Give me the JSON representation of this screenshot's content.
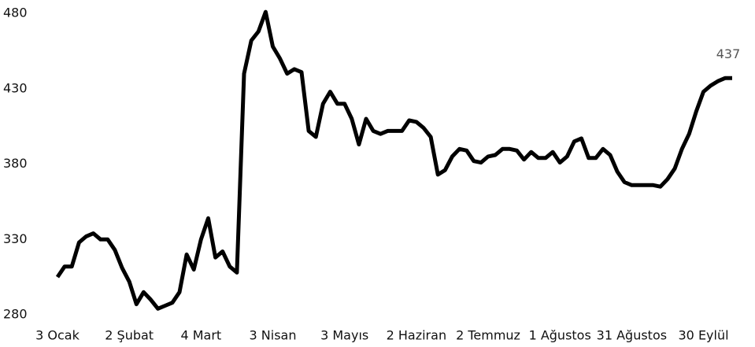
{
  "chart_data": {
    "type": "line",
    "categories": [
      "3 Ocak",
      null,
      null,
      null,
      null,
      null,
      null,
      null,
      null,
      null,
      "2 Şubat",
      null,
      null,
      null,
      null,
      null,
      null,
      null,
      null,
      null,
      "4 Mart",
      null,
      null,
      null,
      null,
      null,
      null,
      null,
      null,
      null,
      "3 Nisan",
      null,
      null,
      null,
      null,
      null,
      null,
      null,
      null,
      null,
      "3 Mayıs",
      null,
      null,
      null,
      null,
      null,
      null,
      null,
      null,
      null,
      "2 Haziran",
      null,
      null,
      null,
      null,
      null,
      null,
      null,
      null,
      null,
      "2 Temmuz",
      null,
      null,
      null,
      null,
      null,
      null,
      null,
      null,
      null,
      "1 Ağustos",
      null,
      null,
      null,
      null,
      null,
      null,
      null,
      null,
      null,
      "31 Ağustos",
      null,
      null,
      null,
      null,
      null,
      null,
      null,
      null,
      null,
      "30 Eylül",
      null,
      null,
      null,
      null
    ],
    "series": [
      {
        "color": "#000000",
        "values": [
          305,
          312,
          312,
          328,
          332,
          334,
          330,
          330,
          323,
          311,
          302,
          287,
          295,
          290,
          284,
          286,
          288,
          295,
          320,
          310,
          330,
          344,
          318,
          322,
          312,
          308,
          440,
          462,
          468,
          481,
          458,
          450,
          440,
          443,
          441,
          402,
          398,
          420,
          428,
          420,
          420,
          410,
          393,
          410,
          402,
          400,
          402,
          402,
          402,
          409,
          408,
          404,
          398,
          373,
          376,
          385,
          390,
          389,
          382,
          381,
          385,
          386,
          390,
          390,
          389,
          383,
          388,
          384,
          384,
          388,
          381,
          385,
          395,
          397,
          384,
          384,
          390,
          386,
          375,
          368,
          366,
          366,
          366,
          366,
          365,
          370,
          377,
          390,
          400,
          415,
          428,
          432,
          435,
          437,
          437
        ]
      }
    ],
    "ylim": [
      280,
      480
    ],
    "yticks": [
      280,
      330,
      380,
      430,
      480
    ],
    "grid": false
  }
}
